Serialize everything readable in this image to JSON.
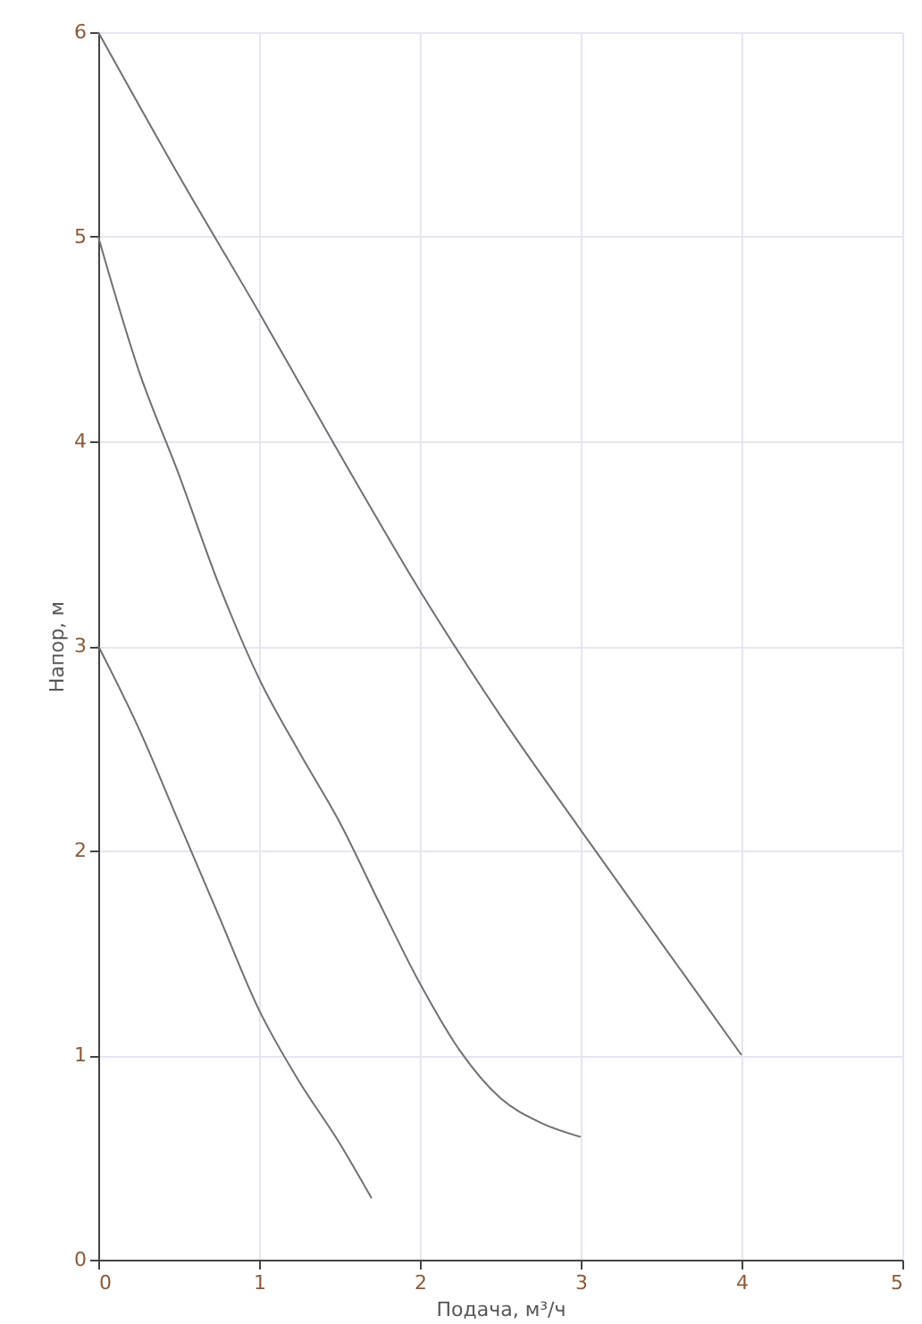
{
  "chart_data": {
    "type": "line",
    "xlabel": "Подача, м³/ч",
    "ylabel": "Напор, м",
    "series": [
      {
        "color": "#707070",
        "x": [
          0,
          0.5,
          1,
          1.5,
          2,
          2.5,
          3,
          3.5,
          4
        ],
        "values": [
          6,
          5.3,
          4.63,
          3.94,
          3.27,
          2.66,
          2.1,
          1.55,
          1.0
        ]
      },
      {
        "color": "#707070",
        "x": [
          0,
          0.25,
          0.5,
          0.75,
          1,
          1.25,
          1.5,
          1.75,
          2,
          2.25,
          2.5,
          2.75,
          3
        ],
        "values": [
          5,
          4.35,
          3.84,
          3.3,
          2.84,
          2.48,
          2.14,
          1.74,
          1.35,
          1.02,
          0.79,
          0.67,
          0.6
        ]
      },
      {
        "color": "#707070",
        "x": [
          0,
          0.25,
          0.5,
          0.75,
          1,
          1.25,
          1.5,
          1.7
        ],
        "values": [
          3,
          2.6,
          2.14,
          1.68,
          1.22,
          0.87,
          0.57,
          0.3
        ]
      }
    ],
    "xlim": [
      0,
      5
    ],
    "xticks": [
      0,
      1,
      2,
      3,
      4,
      5
    ],
    "ylim": [
      0,
      6
    ],
    "yticks": [
      0,
      1,
      2,
      3,
      4,
      5,
      6
    ],
    "grid": true,
    "marker": "none",
    "line_style": "solid"
  }
}
